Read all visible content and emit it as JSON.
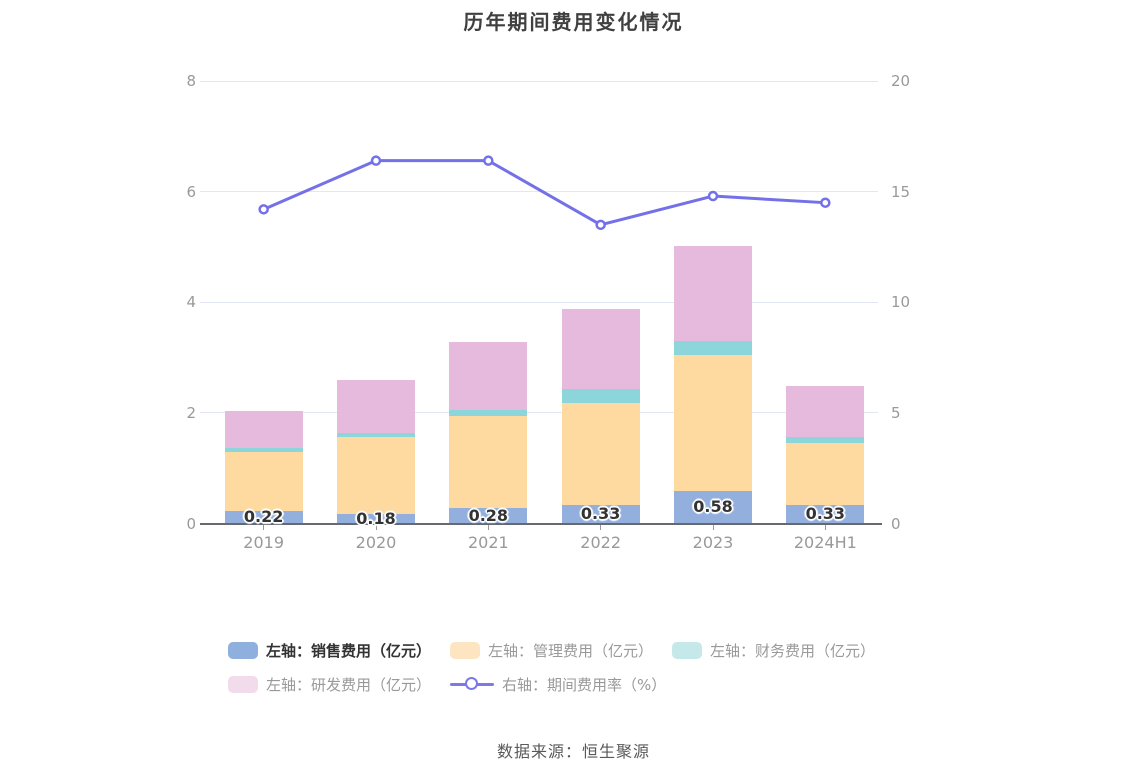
{
  "title": "历年期间费用变化情况",
  "footer": "数据来源：恒生聚源",
  "legend": {
    "rows": [
      [
        {
          "id": "sales",
          "label": "左轴：销售费用（亿元）",
          "swatch": "rect",
          "color": "#8FB0DE",
          "emphasized": true
        },
        {
          "id": "management",
          "label": "左轴：管理费用（亿元）",
          "swatch": "rect",
          "color": "#FCE5C0",
          "emphasized": false
        },
        {
          "id": "financial",
          "label": "左轴：财务费用（亿元）",
          "swatch": "rect",
          "color": "#C5E8EB",
          "emphasized": false
        }
      ],
      [
        {
          "id": "rd",
          "label": "左轴：研发费用（亿元）",
          "swatch": "rect",
          "color": "#F2DBEB",
          "emphasized": false
        },
        {
          "id": "expense-rate",
          "label": "右轴：期间费用率（%）",
          "swatch": "line",
          "color": "#7B79E8",
          "emphasized": false
        }
      ]
    ]
  },
  "chart_data": {
    "type": "stacked-bar+line dual-axis",
    "categories": [
      "2019",
      "2020",
      "2021",
      "2022",
      "2023",
      "2024H1"
    ],
    "bar_series": [
      {
        "name": "左轴：销售费用（亿元）",
        "color": "#92AFDD",
        "values": [
          0.22,
          0.18,
          0.28,
          0.33,
          0.58,
          0.33
        ],
        "data_labels": [
          "0.22",
          "0.18",
          "0.28",
          "0.33",
          "0.58",
          "0.33"
        ]
      },
      {
        "name": "左轴：管理费用（亿元）",
        "color": "#FED9A0",
        "values": [
          1.07,
          1.38,
          1.66,
          1.84,
          2.47,
          1.13
        ]
      },
      {
        "name": "左轴：财务费用（亿元）",
        "color": "#8BD5DB",
        "values": [
          0.07,
          0.08,
          0.11,
          0.26,
          0.25,
          0.1
        ]
      },
      {
        "name": "左轴：研发费用（亿元）",
        "color": "#E6BADC",
        "values": [
          0.68,
          0.95,
          1.23,
          1.44,
          1.72,
          0.92
        ]
      }
    ],
    "bar_totals": [
      2.04,
      2.59,
      3.28,
      3.87,
      5.02,
      2.48
    ],
    "line_series": {
      "name": "右轴：期间费用率（%）",
      "axis": "right",
      "color": "#7470E8",
      "values": [
        14.2,
        16.4,
        16.4,
        13.5,
        14.8,
        14.5
      ]
    },
    "left_axis": {
      "min": 0,
      "max": 8,
      "tick_values": [
        0,
        2,
        4,
        6,
        8
      ],
      "tick_labels": [
        "0",
        "2",
        "4",
        "6",
        "8"
      ]
    },
    "right_axis": {
      "min": 0,
      "max": 20,
      "tick_values": [
        0,
        5,
        10,
        15,
        20
      ],
      "tick_labels": [
        "0",
        "5",
        "10",
        "15",
        "20"
      ]
    },
    "grid": "horizontal gridlines on",
    "legend_position": "bottom-left"
  }
}
